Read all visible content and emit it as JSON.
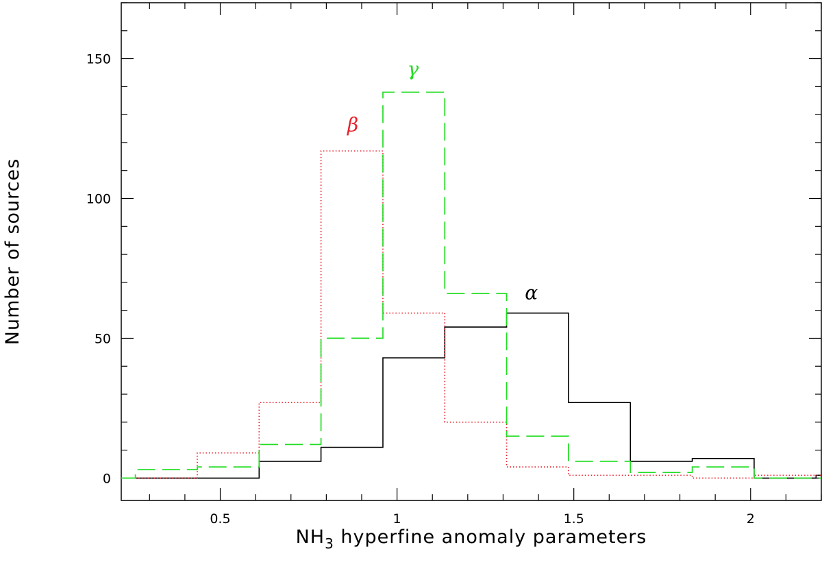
{
  "chart_data": {
    "type": "histogram",
    "xlabel": {
      "main": "NH",
      "sub": "3",
      "rest": " hyperfine anomaly parameters"
    },
    "ylabel": "Number of sources",
    "xlim": [
      0.22,
      2.2
    ],
    "ylim": [
      -8,
      170
    ],
    "x_ticks": [
      {
        "value": 0.5,
        "label": "0.5"
      },
      {
        "value": 1.0,
        "label": "1"
      },
      {
        "value": 1.5,
        "label": "1.5"
      },
      {
        "value": 2.0,
        "label": "2"
      }
    ],
    "y_ticks": [
      {
        "value": 0,
        "label": "0"
      },
      {
        "value": 50,
        "label": "50"
      },
      {
        "value": 100,
        "label": "100"
      },
      {
        "value": 150,
        "label": "150"
      }
    ],
    "series": [
      {
        "name": "α",
        "color": "#000000",
        "line_style": "solid",
        "bins": [
          0.26,
          0.435,
          0.61,
          0.785,
          0.96,
          1.135,
          1.31,
          1.485,
          1.66,
          1.835,
          2.01,
          2.185,
          2.2
        ],
        "counts": [
          0,
          0,
          6,
          11,
          43,
          54,
          59,
          27,
          6,
          7,
          0,
          1
        ],
        "label_at": [
          1.38,
          64
        ]
      },
      {
        "name": "β",
        "color": "#e8202a",
        "line_style": "dotted",
        "bins": [
          0.26,
          0.435,
          0.61,
          0.785,
          0.96,
          1.135,
          1.31,
          1.485,
          1.66,
          1.835,
          2.01,
          2.185,
          2.2
        ],
        "counts": [
          0,
          9,
          27,
          117,
          59,
          20,
          4,
          1,
          1,
          0,
          1,
          1
        ],
        "label_at": [
          0.875,
          124
        ]
      },
      {
        "name": "γ",
        "color": "#22dd22",
        "line_style": "dashed",
        "bins": [
          0.22,
          0.26,
          0.435,
          0.61,
          0.785,
          0.96,
          1.135,
          1.31,
          1.485,
          1.66,
          1.835,
          2.01,
          2.185,
          2.2
        ],
        "counts": [
          0,
          3,
          4,
          12,
          50,
          138,
          66,
          15,
          6,
          2,
          4,
          0,
          0
        ],
        "label_at": [
          1.045,
          144
        ]
      }
    ],
    "grid": false,
    "legend": "none"
  }
}
